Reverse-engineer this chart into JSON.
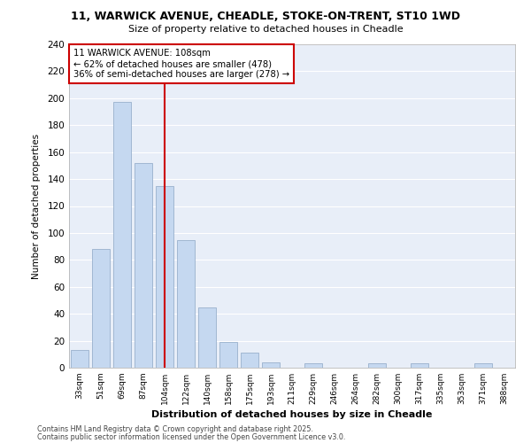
{
  "title_line1": "11, WARWICK AVENUE, CHEADLE, STOKE-ON-TRENT, ST10 1WD",
  "title_line2": "Size of property relative to detached houses in Cheadle",
  "xlabel": "Distribution of detached houses by size in Cheadle",
  "ylabel": "Number of detached properties",
  "categories": [
    "33sqm",
    "51sqm",
    "69sqm",
    "87sqm",
    "104sqm",
    "122sqm",
    "140sqm",
    "158sqm",
    "175sqm",
    "193sqm",
    "211sqm",
    "229sqm",
    "246sqm",
    "264sqm",
    "282sqm",
    "300sqm",
    "317sqm",
    "335sqm",
    "353sqm",
    "371sqm",
    "388sqm"
  ],
  "values": [
    13,
    88,
    197,
    152,
    135,
    95,
    45,
    19,
    11,
    4,
    0,
    3,
    0,
    0,
    3,
    0,
    3,
    0,
    0,
    3,
    0
  ],
  "bar_color": "#c5d8f0",
  "bar_edge_color": "#99b0cc",
  "annotation_box_color": "#cc0000",
  "annotation_text_line1": "11 WARWICK AVENUE: 108sqm",
  "annotation_text_line2": "← 62% of detached houses are smaller (478)",
  "annotation_text_line3": "36% of semi-detached houses are larger (278) →",
  "property_line_x": 4.0,
  "vline_color": "#cc0000",
  "ylim": [
    0,
    240
  ],
  "yticks": [
    0,
    20,
    40,
    60,
    80,
    100,
    120,
    140,
    160,
    180,
    200,
    220,
    240
  ],
  "bg_color": "#e8eef8",
  "grid_color": "#ffffff",
  "footer_line1": "Contains HM Land Registry data © Crown copyright and database right 2025.",
  "footer_line2": "Contains public sector information licensed under the Open Government Licence v3.0."
}
